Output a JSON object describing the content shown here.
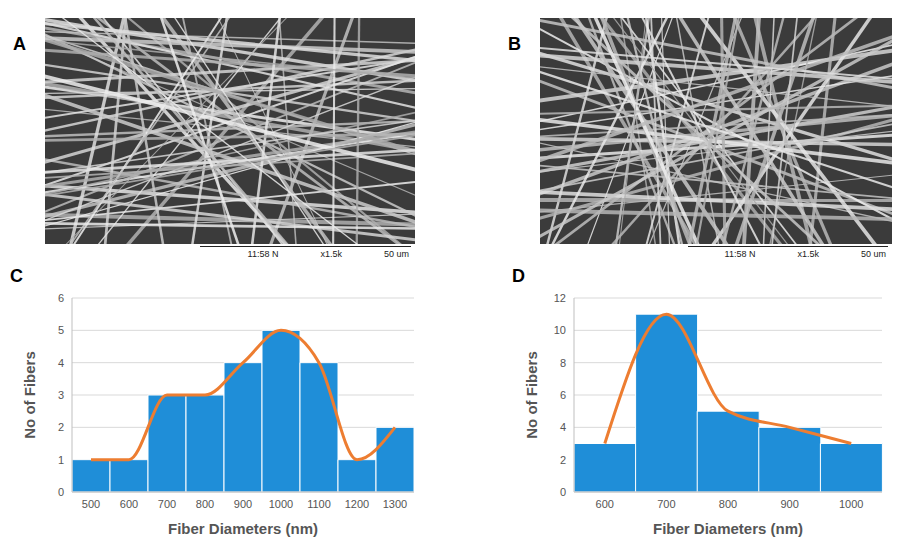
{
  "images": [
    {
      "label": "A",
      "caption": [
        "11:58 N",
        "x1.5k",
        "50 um"
      ]
    },
    {
      "label": "B",
      "caption": [
        "11:58 N",
        "x1.5k",
        "50 um"
      ]
    }
  ],
  "chart_data": [
    {
      "type": "bar",
      "title": "C",
      "x_label": "Fiber Diameters (nm)",
      "y_label": "No of Fibers",
      "categories": [
        "500",
        "600",
        "700",
        "800",
        "900",
        "1000",
        "1100",
        "1200",
        "1300"
      ],
      "series": [
        {
          "type": "bar",
          "color": "#1f8ed8",
          "values": [
            1,
            1,
            3,
            3,
            4,
            5,
            4,
            1,
            2
          ]
        },
        {
          "type": "line",
          "color": "#ed7d31",
          "line_style": "smooth",
          "marker": "none",
          "values": [
            1,
            1,
            3,
            3,
            4,
            5,
            4,
            1,
            2
          ]
        }
      ],
      "ylim": [
        0,
        6
      ],
      "yticks": [
        0,
        1,
        2,
        3,
        4,
        5,
        6
      ],
      "grid": true
    },
    {
      "type": "bar",
      "title": "D",
      "x_label": "Fiber Diameters (nm)",
      "y_label": "No of Fibers",
      "categories": [
        "600",
        "700",
        "800",
        "900",
        "1000"
      ],
      "series": [
        {
          "type": "bar",
          "color": "#1f8ed8",
          "values": [
            3,
            11,
            5,
            4,
            3
          ]
        },
        {
          "type": "line",
          "color": "#ed7d31",
          "line_style": "smooth",
          "marker": "none",
          "values": [
            3,
            11,
            5,
            4,
            3
          ]
        }
      ],
      "ylim": [
        0,
        12
      ],
      "yticks": [
        0,
        2,
        4,
        6,
        8,
        10,
        12
      ],
      "grid": true
    }
  ]
}
